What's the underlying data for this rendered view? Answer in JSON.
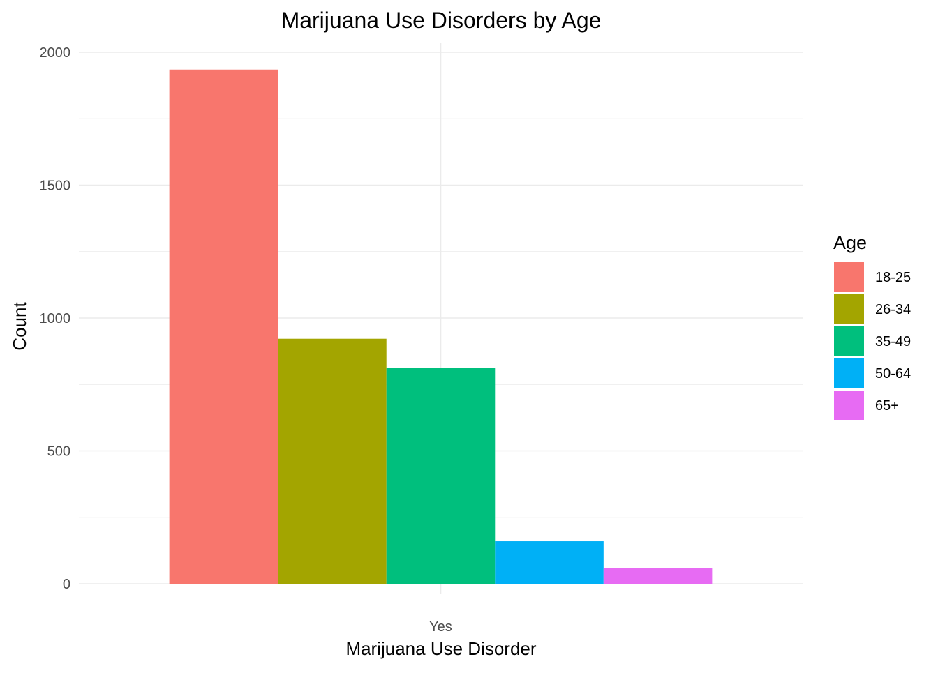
{
  "chart_data": {
    "type": "bar",
    "title": "Marijuana Use Disorders by Age",
    "xlabel": "Marijuana Use Disorder",
    "ylabel": "Count",
    "categories": [
      "Yes"
    ],
    "ylim": [
      0,
      2000
    ],
    "yticks": [
      0,
      500,
      1000,
      1500,
      2000
    ],
    "grid": true,
    "legend": {
      "title": "Age",
      "placement": "right"
    },
    "series": [
      {
        "name": "18-25",
        "values": [
          1935
        ],
        "color": "#F8766D"
      },
      {
        "name": "26-34",
        "values": [
          922
        ],
        "color": "#A3A500"
      },
      {
        "name": "35-49",
        "values": [
          812
        ],
        "color": "#00BF7D"
      },
      {
        "name": "50-64",
        "values": [
          160
        ],
        "color": "#00B0F6"
      },
      {
        "name": "65+",
        "values": [
          60
        ],
        "color": "#E76BF3"
      }
    ]
  }
}
